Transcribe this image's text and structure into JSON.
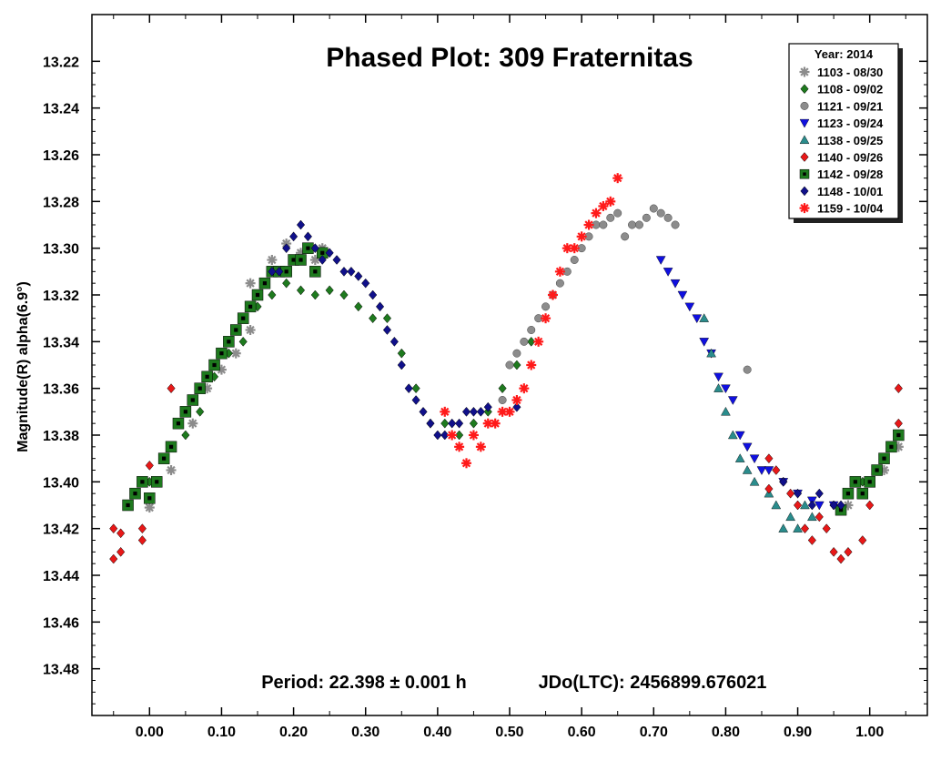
{
  "chart_data": {
    "type": "scatter",
    "title": "Phased Plot: 309 Fraternitas",
    "ylabel": "Magnitude(R) alpha(6.9°)",
    "xlabel": "",
    "xlim": [
      -0.08,
      1.08
    ],
    "ylim": [
      13.5,
      13.2
    ],
    "y_inverted": true,
    "x_ticks": [
      "0.00",
      "0.10",
      "0.20",
      "0.30",
      "0.40",
      "0.50",
      "0.60",
      "0.70",
      "0.80",
      "0.90",
      "1.00"
    ],
    "y_ticks": [
      "13.22",
      "13.24",
      "13.26",
      "13.28",
      "13.30",
      "13.32",
      "13.34",
      "13.36",
      "13.38",
      "13.40",
      "13.42",
      "13.44",
      "13.46",
      "13.48"
    ],
    "period_text": "Period: 22.398 ± 0.001 h",
    "epoch_text": "JDo(LTC): 2456899.676021",
    "legend": {
      "title": "Year: 2014",
      "placement": "top-right"
    },
    "series": [
      {
        "name": "1103 - 08/30",
        "marker": "asterisk",
        "color": "#8c8c8c",
        "points": [
          [
            0.0,
            13.411
          ],
          [
            0.01,
            13.4
          ],
          [
            0.03,
            13.395
          ],
          [
            0.06,
            13.375
          ],
          [
            0.08,
            13.36
          ],
          [
            0.1,
            13.352
          ],
          [
            0.12,
            13.345
          ],
          [
            0.14,
            13.335
          ],
          [
            0.14,
            13.315
          ],
          [
            0.17,
            13.305
          ],
          [
            0.19,
            13.298
          ],
          [
            0.21,
            13.302
          ],
          [
            0.23,
            13.305
          ],
          [
            0.24,
            13.3
          ],
          [
            0.97,
            13.41
          ],
          [
            0.99,
            13.405
          ],
          [
            1.02,
            13.395
          ],
          [
            1.04,
            13.385
          ]
        ]
      },
      {
        "name": "1108 - 09/02",
        "marker": "diamond",
        "color": "#1e7a1e",
        "points": [
          [
            0.0,
            13.4
          ],
          [
            0.02,
            13.39
          ],
          [
            0.05,
            13.38
          ],
          [
            0.07,
            13.37
          ],
          [
            0.09,
            13.355
          ],
          [
            0.11,
            13.345
          ],
          [
            0.13,
            13.34
          ],
          [
            0.15,
            13.325
          ],
          [
            0.17,
            13.32
          ],
          [
            0.19,
            13.315
          ],
          [
            0.21,
            13.318
          ],
          [
            0.23,
            13.32
          ],
          [
            0.25,
            13.318
          ],
          [
            0.27,
            13.32
          ],
          [
            0.29,
            13.325
          ],
          [
            0.31,
            13.33
          ],
          [
            0.33,
            13.33
          ],
          [
            0.35,
            13.345
          ],
          [
            0.37,
            13.36
          ],
          [
            0.39,
            13.375
          ],
          [
            0.41,
            13.375
          ],
          [
            0.43,
            13.38
          ],
          [
            0.45,
            13.375
          ],
          [
            0.47,
            13.37
          ],
          [
            0.49,
            13.36
          ],
          [
            0.51,
            13.35
          ],
          [
            0.53,
            13.34
          ],
          [
            0.95,
            13.41
          ],
          [
            0.97,
            13.405
          ],
          [
            0.99,
            13.4
          ],
          [
            1.01,
            13.395
          ],
          [
            1.03,
            13.385
          ]
        ]
      },
      {
        "name": "1121 - 09/21",
        "marker": "circle",
        "color": "#8c8c8c",
        "points": [
          [
            0.49,
            13.365
          ],
          [
            0.5,
            13.35
          ],
          [
            0.51,
            13.345
          ],
          [
            0.52,
            13.34
          ],
          [
            0.53,
            13.335
          ],
          [
            0.54,
            13.33
          ],
          [
            0.55,
            13.325
          ],
          [
            0.56,
            13.32
          ],
          [
            0.57,
            13.315
          ],
          [
            0.58,
            13.31
          ],
          [
            0.59,
            13.305
          ],
          [
            0.6,
            13.3
          ],
          [
            0.61,
            13.295
          ],
          [
            0.62,
            13.29
          ],
          [
            0.63,
            13.29
          ],
          [
            0.64,
            13.287
          ],
          [
            0.65,
            13.285
          ],
          [
            0.66,
            13.295
          ],
          [
            0.67,
            13.29
          ],
          [
            0.68,
            13.29
          ],
          [
            0.69,
            13.287
          ],
          [
            0.7,
            13.283
          ],
          [
            0.71,
            13.285
          ],
          [
            0.72,
            13.287
          ],
          [
            0.73,
            13.29
          ],
          [
            0.83,
            13.352
          ]
        ]
      },
      {
        "name": "1123 - 09/24",
        "marker": "triangle-down",
        "color": "#1010e0",
        "points": [
          [
            0.71,
            13.305
          ],
          [
            0.72,
            13.31
          ],
          [
            0.73,
            13.315
          ],
          [
            0.74,
            13.32
          ],
          [
            0.75,
            13.325
          ],
          [
            0.76,
            13.33
          ],
          [
            0.77,
            13.34
          ],
          [
            0.78,
            13.345
          ],
          [
            0.79,
            13.355
          ],
          [
            0.8,
            13.36
          ],
          [
            0.81,
            13.365
          ],
          [
            0.82,
            13.38
          ],
          [
            0.83,
            13.385
          ],
          [
            0.84,
            13.39
          ],
          [
            0.85,
            13.395
          ],
          [
            0.86,
            13.395
          ],
          [
            0.88,
            13.4
          ],
          [
            0.9,
            13.405
          ],
          [
            0.92,
            13.408
          ],
          [
            0.93,
            13.41
          ],
          [
            0.95,
            13.41
          ]
        ]
      },
      {
        "name": "1138 - 09/25",
        "marker": "triangle-up",
        "color": "#2a8c8c",
        "points": [
          [
            0.77,
            13.33
          ],
          [
            0.78,
            13.345
          ],
          [
            0.79,
            13.36
          ],
          [
            0.8,
            13.37
          ],
          [
            0.81,
            13.38
          ],
          [
            0.82,
            13.39
          ],
          [
            0.83,
            13.395
          ],
          [
            0.84,
            13.4
          ],
          [
            0.86,
            13.405
          ],
          [
            0.87,
            13.41
          ],
          [
            0.88,
            13.42
          ],
          [
            0.89,
            13.415
          ],
          [
            0.9,
            13.42
          ],
          [
            0.91,
            13.41
          ],
          [
            0.92,
            13.415
          ]
        ]
      },
      {
        "name": "1140 - 09/26",
        "marker": "diamond",
        "color": "#e81818",
        "points": [
          [
            -0.05,
            13.433
          ],
          [
            -0.04,
            13.43
          ],
          [
            -0.05,
            13.42
          ],
          [
            -0.04,
            13.422
          ],
          [
            -0.01,
            13.42
          ],
          [
            -0.01,
            13.425
          ],
          [
            0.0,
            13.393
          ],
          [
            0.03,
            13.36
          ],
          [
            0.04,
            13.375
          ],
          [
            0.86,
            13.403
          ],
          [
            0.86,
            13.39
          ],
          [
            0.87,
            13.395
          ],
          [
            0.88,
            13.4
          ],
          [
            0.89,
            13.405
          ],
          [
            0.9,
            13.41
          ],
          [
            0.91,
            13.42
          ],
          [
            0.92,
            13.425
          ],
          [
            0.93,
            13.415
          ],
          [
            0.94,
            13.42
          ],
          [
            0.95,
            13.43
          ],
          [
            0.96,
            13.433
          ],
          [
            0.97,
            13.43
          ],
          [
            0.99,
            13.425
          ],
          [
            1.0,
            13.41
          ],
          [
            1.04,
            13.36
          ],
          [
            1.04,
            13.375
          ]
        ]
      },
      {
        "name": "1142 - 09/28",
        "marker": "square",
        "color": "#1e7a1e",
        "points": [
          [
            -0.03,
            13.41
          ],
          [
            -0.02,
            13.405
          ],
          [
            -0.01,
            13.4
          ],
          [
            0.0,
            13.407
          ],
          [
            0.01,
            13.4
          ],
          [
            0.02,
            13.39
          ],
          [
            0.03,
            13.385
          ],
          [
            0.04,
            13.375
          ],
          [
            0.05,
            13.37
          ],
          [
            0.06,
            13.365
          ],
          [
            0.07,
            13.36
          ],
          [
            0.08,
            13.355
          ],
          [
            0.09,
            13.35
          ],
          [
            0.1,
            13.345
          ],
          [
            0.11,
            13.34
          ],
          [
            0.12,
            13.335
          ],
          [
            0.13,
            13.33
          ],
          [
            0.14,
            13.325
          ],
          [
            0.15,
            13.32
          ],
          [
            0.16,
            13.315
          ],
          [
            0.17,
            13.31
          ],
          [
            0.18,
            13.31
          ],
          [
            0.19,
            13.31
          ],
          [
            0.2,
            13.305
          ],
          [
            0.21,
            13.305
          ],
          [
            0.22,
            13.3
          ],
          [
            0.23,
            13.31
          ],
          [
            0.24,
            13.302
          ],
          [
            0.96,
            13.412
          ],
          [
            0.97,
            13.405
          ],
          [
            0.98,
            13.4
          ],
          [
            0.99,
            13.405
          ],
          [
            1.0,
            13.4
          ],
          [
            1.01,
            13.395
          ],
          [
            1.02,
            13.39
          ],
          [
            1.03,
            13.385
          ],
          [
            1.04,
            13.38
          ]
        ]
      },
      {
        "name": "1148 - 10/01",
        "marker": "diamond",
        "color": "#10108a",
        "points": [
          [
            0.17,
            13.31
          ],
          [
            0.18,
            13.31
          ],
          [
            0.19,
            13.3
          ],
          [
            0.2,
            13.295
          ],
          [
            0.21,
            13.29
          ],
          [
            0.22,
            13.295
          ],
          [
            0.23,
            13.3
          ],
          [
            0.24,
            13.305
          ],
          [
            0.25,
            13.302
          ],
          [
            0.26,
            13.305
          ],
          [
            0.27,
            13.31
          ],
          [
            0.28,
            13.31
          ],
          [
            0.29,
            13.312
          ],
          [
            0.3,
            13.315
          ],
          [
            0.31,
            13.32
          ],
          [
            0.32,
            13.325
          ],
          [
            0.33,
            13.335
          ],
          [
            0.34,
            13.34
          ],
          [
            0.35,
            13.35
          ],
          [
            0.36,
            13.36
          ],
          [
            0.37,
            13.365
          ],
          [
            0.38,
            13.37
          ],
          [
            0.39,
            13.375
          ],
          [
            0.4,
            13.38
          ],
          [
            0.41,
            13.38
          ],
          [
            0.42,
            13.375
          ],
          [
            0.43,
            13.375
          ],
          [
            0.44,
            13.37
          ],
          [
            0.45,
            13.37
          ],
          [
            0.46,
            13.37
          ],
          [
            0.47,
            13.368
          ],
          [
            0.51,
            13.368
          ],
          [
            0.88,
            13.4
          ],
          [
            0.9,
            13.405
          ],
          [
            0.92,
            13.41
          ],
          [
            0.93,
            13.405
          ],
          [
            0.95,
            13.41
          ],
          [
            0.96,
            13.41
          ]
        ]
      },
      {
        "name": "1159 - 10/04",
        "marker": "asterisk",
        "color": "#ff1a1a",
        "points": [
          [
            0.41,
            13.37
          ],
          [
            0.42,
            13.38
          ],
          [
            0.43,
            13.385
          ],
          [
            0.44,
            13.392
          ],
          [
            0.45,
            13.38
          ],
          [
            0.46,
            13.385
          ],
          [
            0.47,
            13.375
          ],
          [
            0.48,
            13.375
          ],
          [
            0.49,
            13.37
          ],
          [
            0.5,
            13.37
          ],
          [
            0.51,
            13.365
          ],
          [
            0.52,
            13.36
          ],
          [
            0.53,
            13.35
          ],
          [
            0.54,
            13.34
          ],
          [
            0.55,
            13.33
          ],
          [
            0.56,
            13.32
          ],
          [
            0.57,
            13.31
          ],
          [
            0.58,
            13.3
          ],
          [
            0.59,
            13.3
          ],
          [
            0.6,
            13.295
          ],
          [
            0.61,
            13.29
          ],
          [
            0.62,
            13.285
          ],
          [
            0.63,
            13.282
          ],
          [
            0.64,
            13.28
          ],
          [
            0.65,
            13.27
          ]
        ]
      }
    ]
  }
}
